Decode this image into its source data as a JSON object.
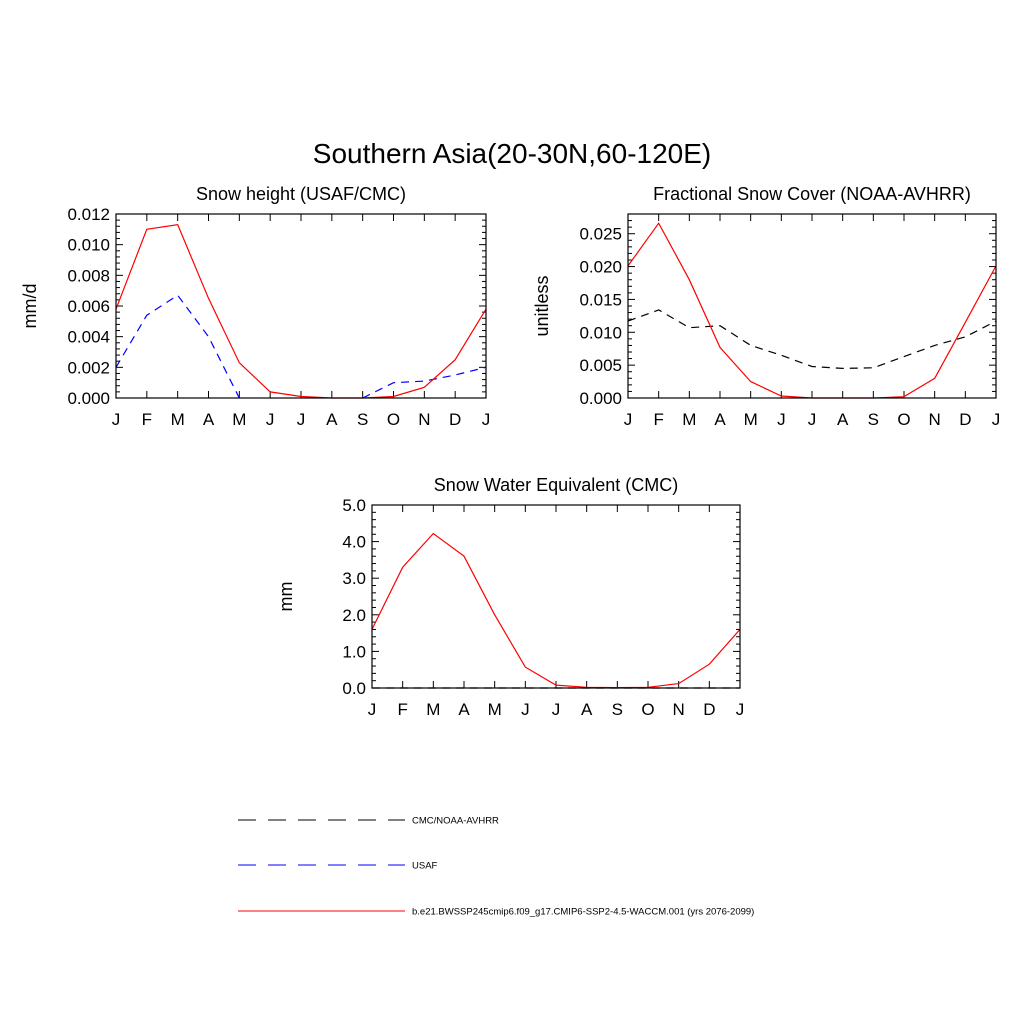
{
  "figure_title": "Southern Asia(20-30N,60-120E)",
  "chart_data": [
    {
      "type": "line",
      "title": "Snow height (USAF/CMC)",
      "ylabel": "mm/d",
      "xlabel": "",
      "categories": [
        "J",
        "F",
        "M",
        "A",
        "M",
        "J",
        "J",
        "A",
        "S",
        "O",
        "N",
        "D",
        "J"
      ],
      "ylim": [
        0,
        0.012
      ],
      "yticks": [
        0.0,
        0.002,
        0.004,
        0.006,
        0.008,
        0.01,
        0.012
      ],
      "ytick_labels": [
        "0.000",
        "0.002",
        "0.004",
        "0.006",
        "0.008",
        "0.010",
        "0.012"
      ],
      "grid": false,
      "series": [
        {
          "key": "obs_usaf",
          "color": "#0000ff",
          "dash": "dashed",
          "values": [
            0.002,
            0.0054,
            0.0067,
            0.004,
            0.0,
            null,
            null,
            null,
            0.0,
            0.001,
            0.0011,
            0.0015,
            0.002
          ]
        },
        {
          "key": "model",
          "color": "#ff0000",
          "dash": "solid",
          "values": [
            0.0058,
            0.011,
            0.0113,
            0.0065,
            0.0023,
            0.0004,
            0.0001,
            0.0,
            0.0,
            0.0001,
            0.0007,
            0.0025,
            0.0058
          ]
        }
      ]
    },
    {
      "type": "line",
      "title": "Fractional Snow Cover (NOAA-AVHRR)",
      "ylabel": "unitless",
      "xlabel": "",
      "categories": [
        "J",
        "F",
        "M",
        "A",
        "M",
        "J",
        "J",
        "A",
        "S",
        "O",
        "N",
        "D",
        "J"
      ],
      "ylim": [
        0,
        0.028
      ],
      "yticks": [
        0.0,
        0.005,
        0.01,
        0.015,
        0.02,
        0.025
      ],
      "ytick_labels": [
        "0.000",
        "0.005",
        "0.010",
        "0.015",
        "0.020",
        "0.025"
      ],
      "grid": false,
      "series": [
        {
          "key": "obs_cmc",
          "color": "#000000",
          "dash": "dashed",
          "values": [
            0.0117,
            0.0134,
            0.0107,
            0.011,
            0.008,
            0.0065,
            0.0048,
            0.0045,
            0.0046,
            0.0063,
            0.008,
            0.0093,
            0.0117
          ]
        },
        {
          "key": "model",
          "color": "#ff0000",
          "dash": "solid",
          "values": [
            0.0201,
            0.0266,
            0.018,
            0.0077,
            0.0025,
            0.0003,
            0.0,
            0.0,
            0.0,
            0.0002,
            0.003,
            0.0115,
            0.0201
          ]
        }
      ]
    },
    {
      "type": "line",
      "title": "Snow Water Equivalent (CMC)",
      "ylabel": "mm",
      "xlabel": "",
      "categories": [
        "J",
        "F",
        "M",
        "A",
        "M",
        "J",
        "J",
        "A",
        "S",
        "O",
        "N",
        "D",
        "J"
      ],
      "ylim": [
        0,
        5.0
      ],
      "yticks": [
        0.0,
        1.0,
        2.0,
        3.0,
        4.0,
        5.0
      ],
      "ytick_labels": [
        "0.0",
        "1.0",
        "2.0",
        "3.0",
        "4.0",
        "5.0"
      ],
      "grid": false,
      "series": [
        {
          "key": "obs_cmc",
          "color": "#000000",
          "dash": "dashed",
          "values": [
            0,
            0,
            0,
            0,
            0,
            0,
            0,
            0,
            0,
            0,
            0,
            0,
            0
          ]
        },
        {
          "key": "model",
          "color": "#ff0000",
          "dash": "solid",
          "values": [
            1.6,
            3.3,
            4.22,
            3.6,
            2.0,
            0.57,
            0.08,
            0.02,
            0.01,
            0.02,
            0.12,
            0.65,
            1.6
          ]
        }
      ]
    }
  ],
  "legend": [
    {
      "key": "obs_cmc",
      "label": "CMC/NOAA-AVHRR",
      "color": "#000000",
      "dash": "dashed"
    },
    {
      "key": "obs_usaf",
      "label": "USAF",
      "color": "#0000ff",
      "dash": "dashed"
    },
    {
      "key": "model",
      "label": "b.e21.BWSSP245cmip6.f09_g17.CMIP6-SSP2-4.5-WACCM.001 (yrs 2076-2099)",
      "color": "#ff0000",
      "dash": "solid"
    }
  ]
}
